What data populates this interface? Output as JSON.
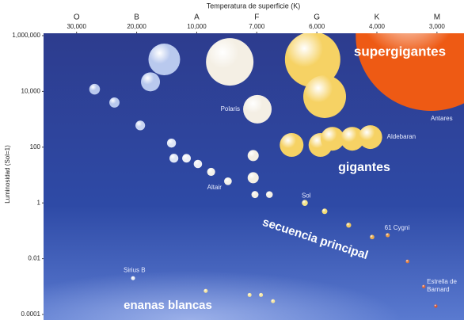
{
  "chart_data": {
    "type": "scatter",
    "title": "Temperatura de superficie (K)",
    "y_label": "Luminosidad (Sol=1)",
    "y_log": true,
    "xlim": [
      -0.55,
      6.45
    ],
    "xticks": [
      {
        "value": 0,
        "label": "O"
      },
      {
        "value": 1,
        "label": "B"
      },
      {
        "value": 2,
        "label": "A"
      },
      {
        "value": 3,
        "label": "F"
      },
      {
        "value": 4,
        "label": "G"
      },
      {
        "value": 5,
        "label": "K"
      },
      {
        "value": 6,
        "label": "M"
      }
    ],
    "temperature_labels": [
      "30,000",
      "20,000",
      "10,000",
      "7,000",
      "6,000",
      "4,000",
      "3,000"
    ],
    "ylim": [
      0.0001,
      1000000
    ],
    "yticks": [
      {
        "value": 1000000,
        "label": "1,000,000"
      },
      {
        "value": 10000,
        "label": "10,000"
      },
      100,
      1,
      0.01,
      0.0001
    ],
    "series": [
      {
        "name": "supergigantes",
        "x": [
          1.46,
          1.23,
          2.55,
          3.93,
          4.13,
          5.9
        ],
        "values": [
          140000,
          22000,
          115000,
          140000,
          6500,
          1000000
        ],
        "colors": [
          "#b9c9ee",
          "#b9c9ee",
          "#f4efe4",
          "#f6d264",
          "#f6d264",
          "#ee5a14"
        ],
        "labels": [
          null,
          null,
          null,
          null,
          null,
          "Antares"
        ]
      },
      {
        "name": "gigantes",
        "x": [
          3.01,
          3.58,
          4.06,
          4.26,
          4.59,
          4.89,
          2.94,
          2.94
        ],
        "values": [
          2300,
          120,
          120,
          200,
          200,
          230,
          50,
          8
        ],
        "colors": [
          "#f4efe4",
          "#f6d264",
          "#f6d264",
          "#f6d264",
          "#f6d264",
          "#f6d264",
          "#f4efe4",
          "#f4efe4"
        ],
        "labels": [
          "Polaris",
          null,
          null,
          null,
          null,
          "Aldebaran",
          null,
          null
        ]
      },
      {
        "name": "secuencia principal",
        "x": [
          0.3,
          0.63,
          1.06,
          1.58,
          1.62,
          1.83,
          2.02,
          2.24,
          2.52,
          2.97,
          3.21,
          3.8,
          4.13,
          4.53,
          4.92,
          5.18,
          5.51,
          5.78,
          5.98
        ],
        "values": [
          12000,
          4000,
          600,
          140,
          40,
          40,
          25,
          13,
          6,
          2,
          2,
          1,
          0.5,
          0.16,
          0.06,
          0.07,
          0.008,
          0.001,
          0.0002
        ],
        "colors": [
          "#b9c9ee",
          "#b9c9ee",
          "#c9d5f2",
          "#dfe6f6",
          "#dfe6f6",
          "#eef0f6",
          "#eef0f6",
          "#f4f2ea",
          "#f4f2ea",
          "#f4efe4",
          "#f4efe4",
          "#f3e38a",
          "#f3dc74",
          "#f0c860",
          "#ecb050",
          "#e89a48",
          "#e07a3c",
          "#d8643a",
          "#d05434"
        ],
        "labels": [
          null,
          null,
          null,
          null,
          null,
          null,
          null,
          null,
          "Altair",
          null,
          null,
          "Sol",
          null,
          null,
          null,
          "61 Cygni",
          null,
          [
            "Estrella de",
            "Barnard"
          ],
          null
        ]
      },
      {
        "name": "enanas blancas",
        "x": [
          0.94,
          2.15,
          2.88,
          3.07,
          3.27
        ],
        "values": [
          0.002,
          0.0007,
          0.0005,
          0.0005,
          0.0003
        ],
        "colors": [
          "#eef0f6",
          "#f6e6a0",
          "#f6e6a0",
          "#f6e6a0",
          "#f6e6a0"
        ],
        "labels": [
          "Sirius B",
          null,
          null,
          null,
          null
        ]
      }
    ]
  }
}
